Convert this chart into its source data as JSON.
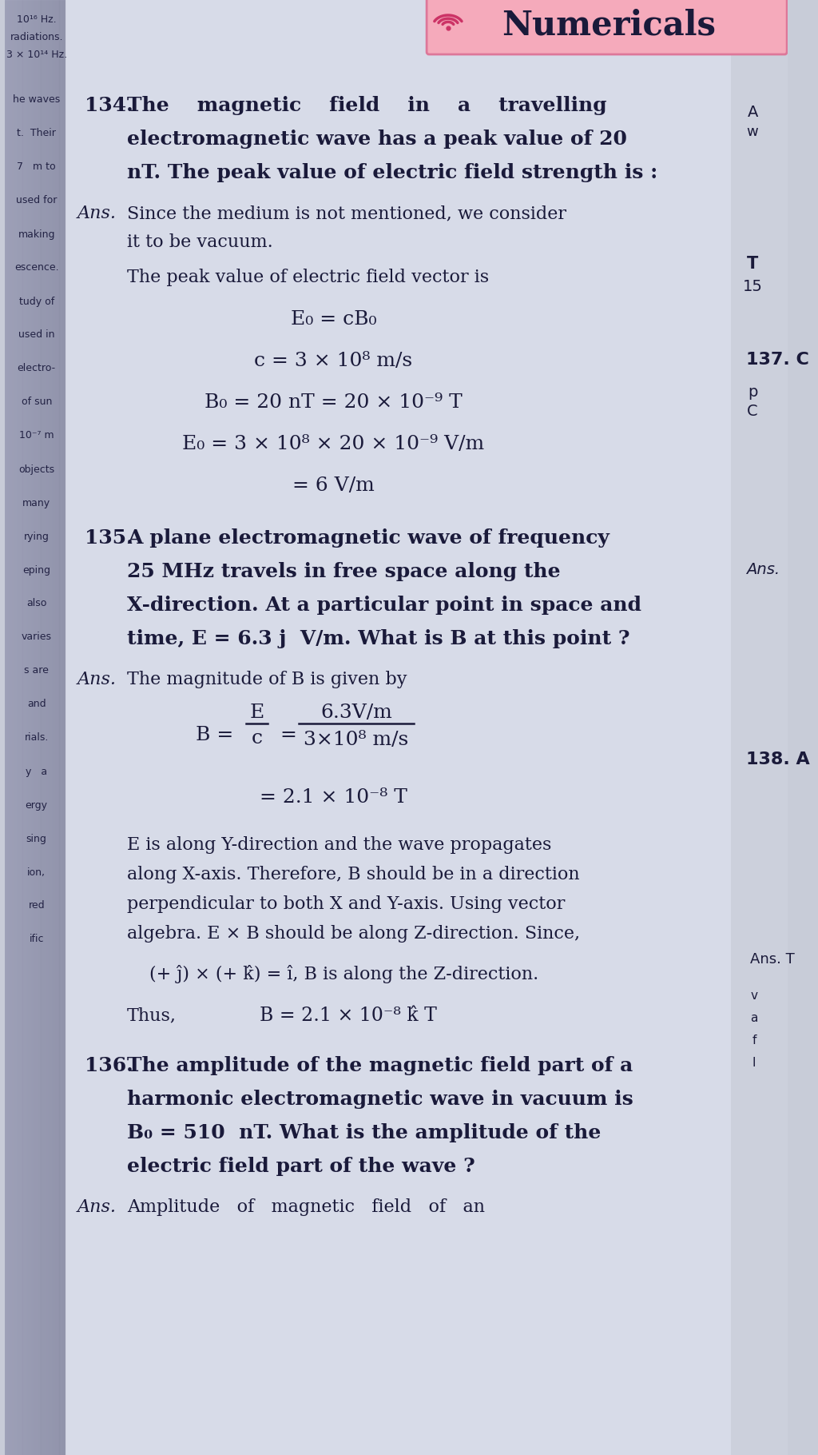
{
  "bg_color": "#c8ccd8",
  "page_color": "#d8dce8",
  "left_shadow": "#b0b4c8",
  "right_bg": "#d0d4e0",
  "header_bg": "#f0a8b8",
  "header_border": "#cc7090",
  "header_text": "Numericals",
  "text_color": "#1a1a3a",
  "signal_color": "#cc3366",
  "left_margin_bg": "#b8bcd0",
  "right_margin_bg": "#c8ccd8",
  "q134_number": "134.",
  "q134_line1": "The    magnetic    field    in    a    travelling",
  "q134_line2": "electromagnetic wave has a peak value of 20",
  "q134_line3": "nT. The peak value of electric field strength is :",
  "ans134_line1": "Since the medium is not mentioned, we consider",
  "ans134_line2": "it to be vacuum.",
  "body134": "The peak value of electric field vector is",
  "eq1": "E₀ = cB₀",
  "eq2": "c = 3 × 10⁸ m/s",
  "eq3": "B₀ = 20 nT = 20 × 10⁻⁹ T",
  "eq4": "E₀ = 3 × 10⁸ × 20 × 10⁻⁹ V/m",
  "eq5": "= 6 V/m",
  "q135_number": "135.",
  "q135_line1": "A plane electromagnetic wave of frequency",
  "q135_line2": "25 MHz travels in free space along the",
  "q135_line3": "X-direction. At a particular point in space and",
  "q135_line4": "time, E = 6.3 j  V/m. What is B at this point ?",
  "ans135_intro": "The magnitude of B is given by",
  "frac_num": "6.3V/m",
  "frac_den": "3×10⁸ m/s",
  "eq6": "= 2.1 × 10⁻⁸ T",
  "body135_1": "E is along Y-direction and the wave propagates",
  "body135_2": "along X-axis. Therefore, B should be in a direction",
  "body135_3": "perpendicular to both X and Y-axis. Using vector",
  "body135_4": "algebra. E × B should be along Z-direction. Since,",
  "eq7": "(+ ĵ) × (+ k̂) = î, B is along the Z-direction.",
  "thus_label": "Thus,",
  "eq8": "B = 2.1 × 10⁻⁸ k̂ T",
  "q136_number": "136.",
  "q136_line1": "The amplitude of the magnetic field part of a",
  "q136_line2": "harmonic electromagnetic wave in vacuum is",
  "q136_line3": "B₀ = 510  nT. What is the amplitude of the",
  "q136_line4": "electric field part of the wave ?",
  "ans136_line": "Ans. Amplitude   of   magnetic   field   of   an",
  "right_ans135": "Ans.",
  "right_137": "137. C",
  "right_p": "p",
  "right_c2": "C",
  "right_138": "138. A",
  "right_ans_t": "Ans. T",
  "top_right_A": "A",
  "top_right_w": "w",
  "right_T": "T",
  "right_15": "15",
  "left_top1": "10¹⁶ Hz.",
  "left_top2": "radiations.",
  "left_top3": "3 × 10¹⁴ Hz.",
  "left_words": [
    "he waves",
    "t.  Their",
    "7   m to",
    "used for",
    "making",
    "escence.",
    "tudy of",
    "used in",
    "electro-",
    "of sun",
    "10⁻⁷ m",
    "objects",
    "many",
    "rying",
    "eping",
    "also",
    "varies",
    "s are",
    "and",
    "rials.",
    "y   a",
    "ergy",
    "sing",
    "ion,",
    "red",
    "ific"
  ]
}
